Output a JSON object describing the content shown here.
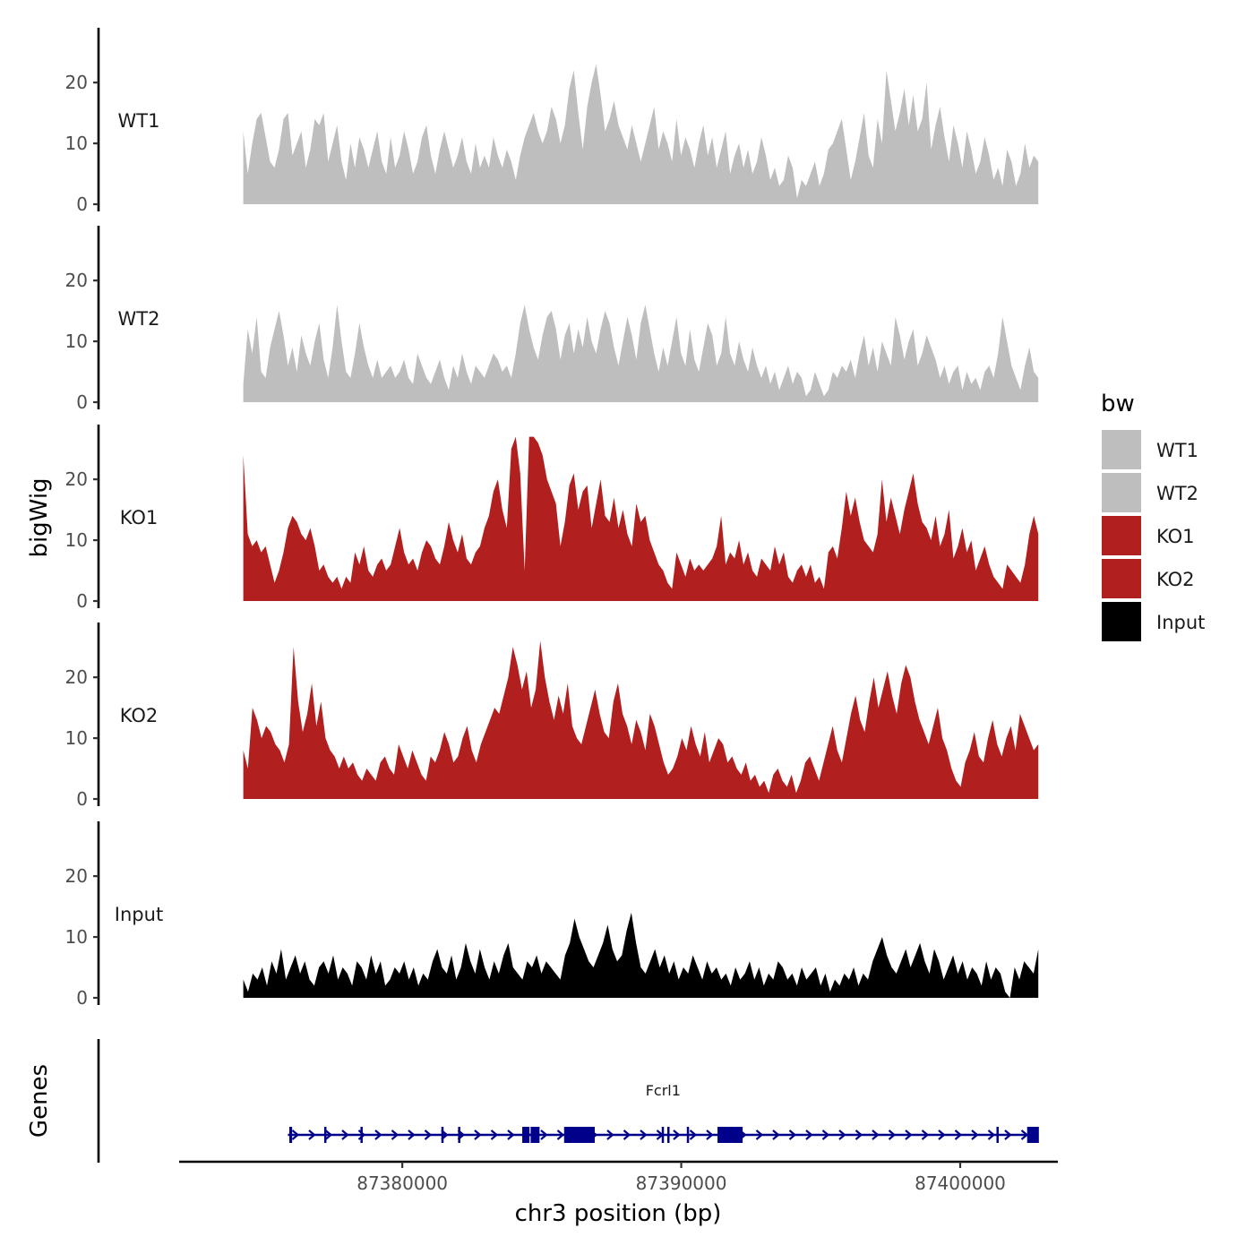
{
  "chart_data": {
    "type": "area",
    "title": "",
    "xlabel": "chr3 position (bp)",
    "ylabel": "bigWig",
    "genes_panel_label": "Genes",
    "xlim": [
      87372000,
      87403500
    ],
    "track_x_range": [
      87374300,
      87402800
    ],
    "ylim": [
      0,
      29
    ],
    "y_ticks": [
      0,
      10,
      20
    ],
    "y_tick_labels": [
      "0",
      "10",
      "20"
    ],
    "x_ticks": [
      87380000,
      87390000,
      87400000
    ],
    "x_tick_labels": [
      "87380000",
      "87390000",
      "87400000"
    ],
    "legend": {
      "title": "bw",
      "position": "right",
      "entries": [
        {
          "name": "WT1",
          "color": "#bebebe"
        },
        {
          "name": "WT2",
          "color": "#bebebe"
        },
        {
          "name": "KO1",
          "color": "#b21f1f"
        },
        {
          "name": "KO2",
          "color": "#b21f1f"
        },
        {
          "name": "Input",
          "color": "#000000"
        }
      ]
    },
    "series": [
      {
        "name": "WT1",
        "color": "#bebebe",
        "values": [
          12,
          5,
          10,
          14,
          15,
          11,
          7,
          6,
          9,
          14,
          15,
          8,
          10,
          12,
          6,
          9,
          14,
          13,
          15,
          7,
          10,
          13,
          7,
          4,
          10,
          6,
          11,
          9,
          6,
          9,
          12,
          7,
          5,
          11,
          6,
          8,
          12,
          9,
          5,
          7,
          11,
          13,
          8,
          5,
          9,
          12,
          9,
          6,
          8,
          11,
          7,
          5,
          10,
          6,
          8,
          6,
          11,
          8,
          6,
          9,
          7,
          4,
          8,
          11,
          13,
          15,
          12,
          10,
          12,
          16,
          14,
          10,
          13,
          19,
          22,
          15,
          9,
          16,
          20,
          23,
          18,
          12,
          14,
          17,
          13,
          11,
          9,
          13,
          10,
          7,
          10,
          13,
          16,
          9,
          12,
          10,
          7,
          14,
          8,
          11,
          9,
          6,
          10,
          13,
          8,
          11,
          6,
          9,
          12,
          5,
          8,
          10,
          6,
          9,
          5,
          7,
          11,
          8,
          4,
          6,
          3,
          4,
          8,
          6,
          1,
          4,
          3,
          5,
          7,
          3,
          5,
          9,
          10,
          12,
          14,
          9,
          4,
          7,
          11,
          15,
          8,
          6,
          14,
          10,
          22,
          17,
          12,
          15,
          19,
          13,
          18,
          12,
          14,
          20,
          9,
          13,
          16,
          11,
          7,
          13,
          10,
          6,
          12,
          9,
          5,
          7,
          11,
          8,
          4,
          6,
          3,
          9,
          7,
          3,
          5,
          10,
          6,
          8,
          7
        ]
      },
      {
        "name": "WT2",
        "color": "#bebebe",
        "values": [
          3,
          12,
          8,
          14,
          5,
          4,
          9,
          12,
          15,
          11,
          6,
          9,
          5,
          11,
          8,
          6,
          10,
          13,
          7,
          4,
          9,
          16,
          10,
          5,
          4,
          8,
          13,
          9,
          6,
          4,
          7,
          4,
          5,
          6,
          4,
          5,
          7,
          4,
          3,
          8,
          6,
          4,
          3,
          5,
          7,
          4,
          2,
          6,
          4,
          8,
          5,
          3,
          6,
          5,
          4,
          6,
          8,
          7,
          5,
          6,
          4,
          8,
          13,
          16,
          12,
          9,
          7,
          11,
          14,
          15,
          12,
          7,
          11,
          13,
          8,
          12,
          9,
          14,
          10,
          8,
          12,
          15,
          13,
          9,
          6,
          10,
          14,
          11,
          7,
          13,
          16,
          12,
          8,
          5,
          9,
          6,
          10,
          14,
          8,
          6,
          12,
          7,
          5,
          9,
          13,
          11,
          6,
          8,
          14,
          8,
          6,
          10,
          7,
          5,
          9,
          6,
          4,
          6,
          3,
          5,
          2,
          4,
          6,
          3,
          5,
          4,
          1,
          2,
          5,
          3,
          1,
          2,
          5,
          4,
          6,
          5,
          7,
          4,
          8,
          11,
          6,
          9,
          5,
          10,
          8,
          6,
          14,
          11,
          7,
          10,
          12,
          6,
          8,
          11,
          9,
          7,
          4,
          6,
          3,
          5,
          6,
          2,
          5,
          3,
          4,
          2,
          5,
          6,
          4,
          8,
          14,
          10,
          6,
          4,
          2,
          6,
          9,
          5,
          4
        ]
      },
      {
        "name": "KO1",
        "color": "#b21f1f",
        "values": [
          24,
          11,
          9,
          10,
          8,
          9,
          6,
          3,
          5,
          8,
          12,
          14,
          13,
          11,
          10,
          12,
          9,
          5,
          6,
          4,
          3,
          4,
          2,
          4,
          3,
          8,
          6,
          9,
          5,
          4,
          6,
          7,
          5,
          6,
          9,
          12,
          8,
          6,
          7,
          5,
          8,
          10,
          9,
          7,
          6,
          9,
          13,
          10,
          8,
          11,
          7,
          6,
          8,
          9,
          12,
          14,
          18,
          20,
          15,
          12,
          25,
          27,
          21,
          5,
          27,
          27,
          26,
          24,
          20,
          18,
          16,
          9,
          13,
          19,
          21,
          15,
          18,
          19,
          12,
          16,
          20,
          14,
          13,
          17,
          12,
          15,
          11,
          9,
          16,
          13,
          14,
          10,
          8,
          6,
          5,
          3,
          2,
          8,
          6,
          4,
          7,
          5,
          6,
          5,
          6,
          7,
          9,
          14,
          6,
          8,
          7,
          10,
          6,
          8,
          5,
          4,
          7,
          6,
          5,
          9,
          6,
          8,
          4,
          3,
          5,
          6,
          4,
          6,
          3,
          4,
          2,
          8,
          9,
          7,
          12,
          18,
          14,
          17,
          13,
          10,
          9,
          8,
          11,
          20,
          13,
          17,
          14,
          11,
          15,
          18,
          21,
          16,
          13,
          12,
          10,
          14,
          9,
          11,
          15,
          7,
          9,
          12,
          8,
          10,
          5,
          7,
          9,
          6,
          4,
          3,
          2,
          6,
          5,
          4,
          3,
          6,
          11,
          14,
          11
        ]
      },
      {
        "name": "KO2",
        "color": "#b21f1f",
        "values": [
          8,
          5,
          15,
          13,
          10,
          12,
          11,
          9,
          8,
          6,
          9,
          25,
          16,
          11,
          14,
          19,
          12,
          16,
          10,
          8,
          7,
          5,
          7,
          5,
          6,
          4,
          3,
          5,
          4,
          3,
          6,
          7,
          5,
          4,
          9,
          7,
          5,
          8,
          6,
          4,
          3,
          7,
          6,
          8,
          11,
          9,
          6,
          7,
          10,
          12,
          8,
          6,
          9,
          11,
          13,
          15,
          14,
          17,
          20,
          25,
          22,
          18,
          21,
          15,
          18,
          26,
          20,
          16,
          13,
          17,
          14,
          19,
          12,
          10,
          9,
          12,
          15,
          18,
          14,
          11,
          10,
          16,
          19,
          14,
          12,
          9,
          13,
          11,
          8,
          14,
          12,
          9,
          6,
          4,
          5,
          7,
          10,
          8,
          12,
          9,
          7,
          11,
          6,
          8,
          10,
          9,
          6,
          7,
          5,
          4,
          6,
          3,
          4,
          2,
          3,
          1,
          4,
          5,
          3,
          2,
          4,
          1,
          3,
          6,
          7,
          5,
          3,
          6,
          9,
          12,
          8,
          6,
          10,
          14,
          17,
          13,
          11,
          16,
          20,
          15,
          18,
          21,
          17,
          14,
          19,
          22,
          20,
          16,
          13,
          11,
          9,
          12,
          15,
          10,
          8,
          5,
          3,
          2,
          6,
          8,
          11,
          7,
          6,
          10,
          13,
          9,
          7,
          10,
          12,
          8,
          14,
          12,
          10,
          8,
          9
        ]
      },
      {
        "name": "Input",
        "color": "#000000",
        "values": [
          3,
          1,
          4,
          3,
          5,
          2,
          6,
          4,
          8,
          3,
          5,
          7,
          4,
          6,
          3,
          2,
          5,
          6,
          4,
          7,
          3,
          5,
          4,
          2,
          6,
          5,
          3,
          7,
          4,
          6,
          2,
          3,
          5,
          4,
          6,
          3,
          5,
          2,
          4,
          3,
          6,
          8,
          5,
          4,
          7,
          3,
          5,
          9,
          6,
          4,
          8,
          5,
          3,
          6,
          4,
          7,
          9,
          5,
          4,
          3,
          6,
          5,
          7,
          4,
          6,
          5,
          4,
          3,
          7,
          9,
          13,
          10,
          8,
          6,
          5,
          7,
          9,
          12,
          8,
          6,
          7,
          11,
          14,
          9,
          5,
          4,
          6,
          8,
          5,
          7,
          4,
          6,
          3,
          5,
          4,
          7,
          5,
          3,
          6,
          4,
          5,
          3,
          4,
          2,
          5,
          3,
          4,
          6,
          3,
          5,
          2,
          4,
          3,
          6,
          5,
          3,
          4,
          2,
          5,
          3,
          4,
          5,
          2,
          4,
          1,
          3,
          2,
          4,
          3,
          5,
          2,
          4,
          3,
          6,
          8,
          10,
          7,
          5,
          4,
          6,
          8,
          5,
          7,
          9,
          6,
          4,
          8,
          6,
          3,
          5,
          7,
          4,
          6,
          3,
          5,
          4,
          2,
          6,
          3,
          5,
          4,
          1,
          0,
          5,
          3,
          6,
          5,
          4,
          8
        ]
      }
    ],
    "genes": [
      {
        "name": "Fcrl1",
        "strand": "+",
        "start": 87375900,
        "end": 87402800,
        "exons": [
          [
            87375950,
            87376050
          ],
          [
            87377200,
            87377240
          ],
          [
            87378500,
            87378540
          ],
          [
            87381400,
            87381440
          ],
          [
            87382000,
            87382050
          ],
          [
            87384300,
            87384560
          ],
          [
            87384600,
            87384920
          ],
          [
            87385800,
            87386900
          ],
          [
            87389300,
            87389360
          ],
          [
            87389500,
            87389550
          ],
          [
            87390200,
            87390260
          ],
          [
            87391300,
            87392200
          ],
          [
            87401300,
            87401360
          ],
          [
            87402400,
            87402820
          ]
        ]
      }
    ]
  }
}
